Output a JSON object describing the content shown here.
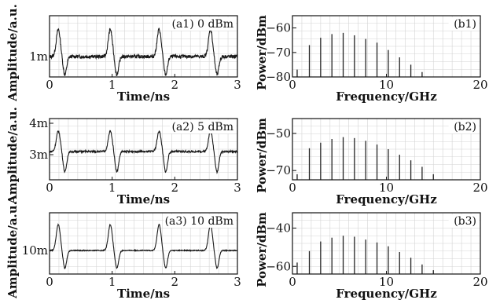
{
  "chart_data": [
    {
      "id": "a1",
      "type": "line",
      "panel_label": "(a1) 0 dBm",
      "xlabel": "Time/ns",
      "ylabel": "Amplitude/a.u.",
      "xlim": [
        0,
        3
      ],
      "ylim": [
        0.55,
        1.9
      ],
      "xticks": [
        0,
        1,
        2,
        3
      ],
      "yticks": [
        {
          "value": 1.0,
          "label": "1m"
        }
      ],
      "pulse_times_ns": [
        0.17,
        1.0,
        1.78,
        2.6
      ],
      "baseline": 1.0,
      "peak": 1.6,
      "trough": 0.6,
      "noise": 0.04,
      "grid": true
    },
    {
      "id": "a2",
      "type": "line",
      "panel_label": "(a2) 5 dBm",
      "xlabel": "Time/ns",
      "ylabel": "Amplitude/a.u.",
      "xlim": [
        0,
        3
      ],
      "ylim": [
        2.2,
        4.15
      ],
      "xticks": [
        0,
        1,
        2,
        3
      ],
      "yticks": [
        {
          "value": 3.0,
          "label": "3m"
        },
        {
          "value": 4.0,
          "label": "4m"
        }
      ],
      "pulse_times_ns": [
        0.17,
        1.0,
        1.78,
        2.6
      ],
      "baseline": 3.1,
      "peak": 3.75,
      "trough": 2.45,
      "noise": 0.03,
      "grid": true
    },
    {
      "id": "a3",
      "type": "line",
      "panel_label": "(a3) 10 dBm",
      "xlabel": "Time/ns",
      "ylabel": "Amplitude/a.u.",
      "xlim": [
        0,
        3
      ],
      "ylim": [
        9.0,
        11.6
      ],
      "xticks": [
        0,
        1,
        2,
        3
      ],
      "yticks": [
        {
          "value": 10.0,
          "label": "10m"
        }
      ],
      "pulse_times_ns": [
        0.17,
        1.0,
        1.78,
        2.6
      ],
      "baseline": 10.0,
      "peak": 11.1,
      "trough": 9.25,
      "noise": 0.02,
      "grid": true
    },
    {
      "id": "b1",
      "type": "bar",
      "panel_label": "(b1)",
      "xlabel": "Frequency/GHz",
      "ylabel": "Power/dBm",
      "xlim": [
        0,
        20
      ],
      "ylim": [
        -80,
        -55
      ],
      "xticks": [
        0,
        10,
        20
      ],
      "yticks": [
        -60,
        -70,
        -80
      ],
      "x": [
        0.5,
        1.8,
        3.0,
        4.2,
        5.4,
        6.6,
        7.8,
        9.0,
        10.2,
        11.4,
        12.6,
        13.8
      ],
      "values": [
        -77,
        -67,
        -64,
        -62.5,
        -62,
        -63,
        -64.5,
        -66,
        -69,
        -72,
        -75,
        -78
      ],
      "grid": true
    },
    {
      "id": "b2",
      "type": "bar",
      "panel_label": "(b2)",
      "xlabel": "Frequency/GHz",
      "ylabel": "Power/dBm",
      "xlim": [
        0,
        20
      ],
      "ylim": [
        -75,
        -42
      ],
      "xticks": [
        0,
        10,
        20
      ],
      "yticks": [
        -50,
        -70
      ],
      "x": [
        0.5,
        1.8,
        3.0,
        4.2,
        5.4,
        6.6,
        7.8,
        9.0,
        10.2,
        11.4,
        12.6,
        13.8,
        15.0
      ],
      "values": [
        -72,
        -58,
        -55,
        -53,
        -52,
        -52.5,
        -54,
        -56,
        -58.5,
        -61.5,
        -64.5,
        -68,
        -72
      ],
      "grid": true
    },
    {
      "id": "b3",
      "type": "bar",
      "panel_label": "(b3)",
      "xlabel": "Frequency/GHz",
      "ylabel": "Power/dBm",
      "xlim": [
        0,
        20
      ],
      "ylim": [
        -64,
        -32
      ],
      "xticks": [
        0,
        10,
        20
      ],
      "yticks": [
        -40,
        -60
      ],
      "x": [
        0.5,
        1.8,
        3.0,
        4.2,
        5.4,
        6.6,
        7.8,
        9.0,
        10.2,
        11.4,
        12.6,
        13.8,
        15.0
      ],
      "values": [
        -58,
        -52,
        -47,
        -45,
        -44,
        -44.5,
        -46,
        -47.5,
        -49.5,
        -52.5,
        -55.5,
        -59,
        -62
      ],
      "grid": true
    }
  ]
}
